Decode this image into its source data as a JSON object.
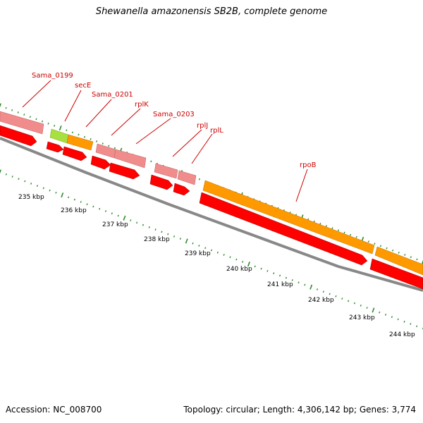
{
  "title": "Shewanella amazonensis SB2B, complete genome",
  "footer": {
    "accession": "Accession: NC_008700",
    "topology": "Topology: circular; Length: 4,306,142 bp; Genes: 3,774"
  },
  "colors": {
    "gene_pink": "#f08c8c",
    "gene_green": "#a8e040",
    "gene_orange": "#ff9900",
    "cds_red": "#ff0000",
    "backbone": "#888888",
    "tick_green": "#2e8b2e",
    "label_red": "#cc0000"
  },
  "gene_labels": [
    {
      "name": "Sama_0199"
    },
    {
      "name": "secE"
    },
    {
      "name": "Sama_0201"
    },
    {
      "name": "rplK"
    },
    {
      "name": "Sama_0203"
    },
    {
      "name": "rplJ"
    },
    {
      "name": "rplL"
    },
    {
      "name": "rpoB"
    }
  ],
  "scale_labels": [
    "235 kbp",
    "236 kbp",
    "237 kbp",
    "238 kbp",
    "239 kbp",
    "240 kbp",
    "241 kbp",
    "242 kbp",
    "243 kbp",
    "244 kbp"
  ]
}
